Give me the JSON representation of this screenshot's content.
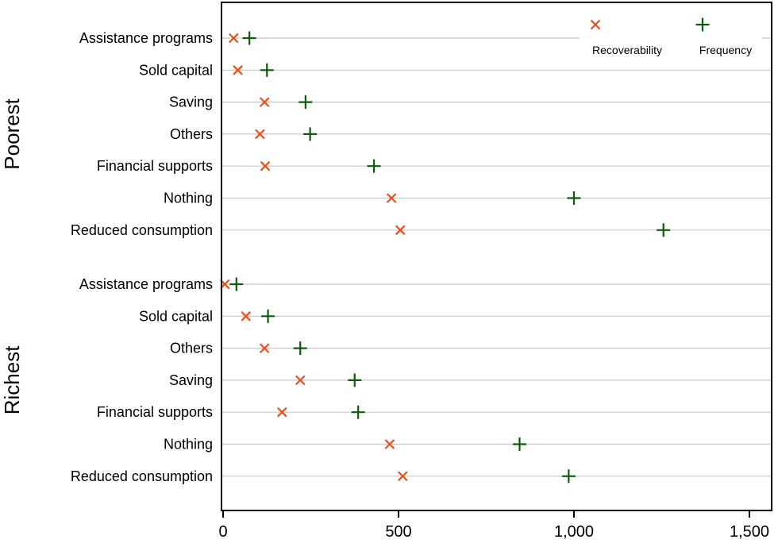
{
  "chart_data": {
    "type": "scatter",
    "orientation": "horizontal-dot-plot",
    "xlim": [
      0,
      1550
    ],
    "x_ticks": [
      0,
      500,
      1000,
      1500
    ],
    "x_tick_labels": [
      "0",
      "500",
      "1,000",
      "1,500"
    ],
    "grid": true,
    "legend_position": "top-right",
    "series_styles": [
      {
        "name": "Recoverability",
        "marker": "x",
        "color": "#e8501e"
      },
      {
        "name": "Frequency",
        "marker": "+",
        "color": "#0a5c0a"
      }
    ],
    "groups": [
      {
        "label": "Poorest",
        "categories": [
          "Assistance programs",
          "Sold capital",
          "Saving",
          "Others",
          "Financial supports",
          "Nothing",
          "Reduced consumption"
        ],
        "recoverability": [
          30,
          42,
          118,
          105,
          120,
          480,
          505
        ],
        "frequency": [
          75,
          125,
          235,
          248,
          430,
          1000,
          1255
        ]
      },
      {
        "label": "Richest",
        "categories": [
          "Assistance programs",
          "Sold capital",
          "Others",
          "Saving",
          "Financial supports",
          "Nothing",
          "Reduced consumption"
        ],
        "recoverability": [
          5,
          65,
          118,
          220,
          168,
          475,
          512
        ],
        "frequency": [
          38,
          128,
          220,
          375,
          385,
          845,
          985
        ]
      }
    ]
  }
}
